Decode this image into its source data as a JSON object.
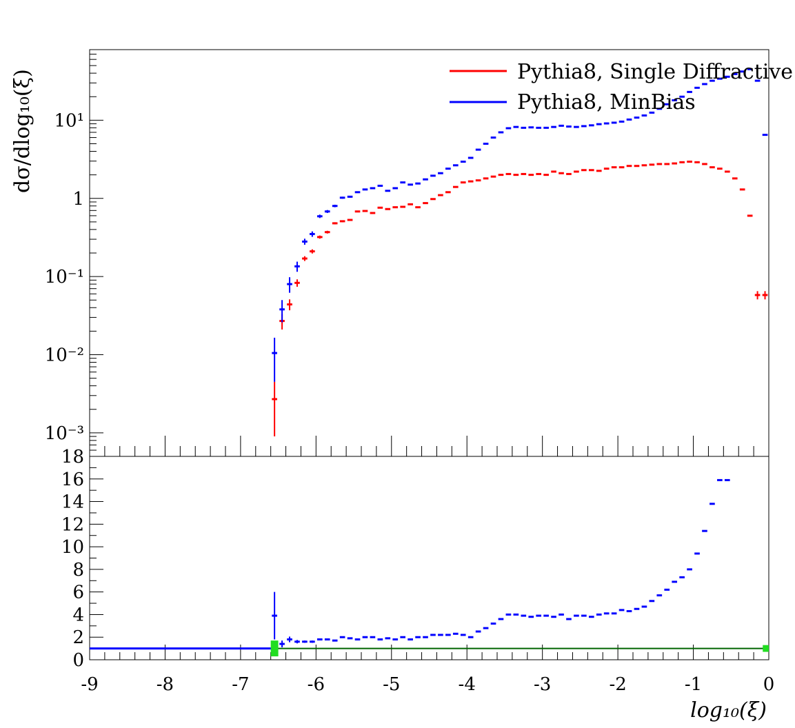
{
  "chart_data": [
    {
      "type": "scatter",
      "panel": "main",
      "yscale": "log",
      "xlim": [
        -9,
        0
      ],
      "ylim": [
        0.0005,
        80
      ],
      "ylabel": "dσ/dlog₁₀(ξ)",
      "xlabel": "",
      "y_ticks": [
        {
          "value": 0.001,
          "label": "10⁻³"
        },
        {
          "value": 0.01,
          "label": "10⁻²"
        },
        {
          "value": 0.1,
          "label": "10⁻¹"
        },
        {
          "value": 1,
          "label": "1"
        },
        {
          "value": 10,
          "label": "10¹"
        }
      ],
      "legend_position": "top-right",
      "series": [
        {
          "name": "Pythia8, Single Diffractive",
          "color": "#ff0000",
          "x": [
            -6.55,
            -6.45,
            -6.35,
            -6.25,
            -6.15,
            -6.05,
            -5.95,
            -5.85,
            -5.75,
            -5.65,
            -5.55,
            -5.45,
            -5.35,
            -5.25,
            -5.15,
            -5.05,
            -4.95,
            -4.85,
            -4.75,
            -4.65,
            -4.55,
            -4.45,
            -4.35,
            -4.25,
            -4.15,
            -4.05,
            -3.95,
            -3.85,
            -3.75,
            -3.65,
            -3.55,
            -3.45,
            -3.35,
            -3.25,
            -3.15,
            -3.05,
            -2.95,
            -2.85,
            -2.75,
            -2.65,
            -2.55,
            -2.45,
            -2.35,
            -2.25,
            -2.15,
            -2.05,
            -1.95,
            -1.85,
            -1.75,
            -1.65,
            -1.55,
            -1.45,
            -1.35,
            -1.25,
            -1.15,
            -1.05,
            -0.95,
            -0.85,
            -0.75,
            -0.65,
            -0.55,
            -0.45,
            -0.35,
            -0.25,
            -0.15,
            -0.05
          ],
          "y": [
            0.0027,
            0.027,
            0.044,
            0.083,
            0.17,
            0.21,
            0.32,
            0.37,
            0.48,
            0.51,
            0.53,
            0.68,
            0.69,
            0.65,
            0.76,
            0.73,
            0.77,
            0.78,
            0.84,
            0.77,
            0.87,
            0.98,
            1.1,
            1.2,
            1.4,
            1.6,
            1.65,
            1.7,
            1.8,
            1.9,
            2.0,
            2.05,
            2.0,
            2.05,
            2.0,
            2.05,
            2.0,
            2.2,
            2.1,
            2.05,
            2.2,
            2.3,
            2.3,
            2.25,
            2.4,
            2.5,
            2.5,
            2.6,
            2.6,
            2.65,
            2.7,
            2.75,
            2.75,
            2.8,
            2.9,
            2.95,
            2.9,
            2.75,
            2.5,
            2.4,
            2.2,
            1.8,
            1.3,
            0.6,
            0.058,
            0.058
          ],
          "yerr": [
            0.0018,
            0.006,
            0.007,
            0.009,
            0.012,
            0.013,
            0.015,
            0.015,
            0.015,
            0.015,
            0.015,
            0.016,
            0.016,
            0.016,
            0.016,
            0.016,
            0.016,
            0.016,
            0.016,
            0.016,
            0.016,
            0.016,
            0.016,
            0.016,
            0.016,
            0.016,
            0.016,
            0.016,
            0.016,
            0.016,
            0.016,
            0.016,
            0.016,
            0.016,
            0.016,
            0.016,
            0.016,
            0.016,
            0.016,
            0.016,
            0.016,
            0.016,
            0.016,
            0.016,
            0.016,
            0.016,
            0.016,
            0.016,
            0.016,
            0.016,
            0.016,
            0.016,
            0.016,
            0.016,
            0.016,
            0.016,
            0.016,
            0.016,
            0.016,
            0.016,
            0.016,
            0.016,
            0.016,
            0.016,
            0.007,
            0.007
          ]
        },
        {
          "name": "Pythia8, MinBias",
          "color": "#0000ff",
          "x": [
            -6.55,
            -6.45,
            -6.35,
            -6.25,
            -6.15,
            -6.05,
            -5.95,
            -5.85,
            -5.75,
            -5.65,
            -5.55,
            -5.45,
            -5.35,
            -5.25,
            -5.15,
            -5.05,
            -4.95,
            -4.85,
            -4.75,
            -4.65,
            -4.55,
            -4.45,
            -4.35,
            -4.25,
            -4.15,
            -4.05,
            -3.95,
            -3.85,
            -3.75,
            -3.65,
            -3.55,
            -3.45,
            -3.35,
            -3.25,
            -3.15,
            -3.05,
            -2.95,
            -2.85,
            -2.75,
            -2.65,
            -2.55,
            -2.45,
            -2.35,
            -2.25,
            -2.15,
            -2.05,
            -1.95,
            -1.85,
            -1.75,
            -1.65,
            -1.55,
            -1.45,
            -1.35,
            -1.25,
            -1.15,
            -1.05,
            -0.95,
            -0.85,
            -0.75,
            -0.65,
            -0.55,
            -0.45,
            -0.35,
            -0.25,
            -0.15,
            -0.05
          ],
          "y": [
            0.0105,
            0.038,
            0.08,
            0.135,
            0.28,
            0.35,
            0.59,
            0.68,
            0.8,
            1.02,
            1.05,
            1.2,
            1.3,
            1.35,
            1.45,
            1.25,
            1.35,
            1.6,
            1.5,
            1.55,
            1.75,
            1.95,
            2.1,
            2.4,
            2.65,
            2.95,
            3.3,
            4.2,
            5.0,
            6.0,
            7.0,
            7.9,
            8.2,
            8.0,
            8.1,
            8.0,
            8.0,
            8.2,
            8.5,
            8.3,
            8.2,
            8.4,
            8.6,
            8.9,
            9.1,
            9.3,
            9.6,
            10.2,
            10.8,
            11.5,
            12.5,
            14,
            16,
            18,
            20,
            23,
            26,
            29,
            32,
            34,
            36,
            39,
            42,
            45,
            32,
            6.5
          ],
          "yerr": [
            0.006,
            0.012,
            0.018,
            0.02,
            0.025,
            0.028,
            0.03,
            0.03,
            0.03,
            0.03,
            0.03,
            0.03,
            0.03,
            0.03,
            0.03,
            0.03,
            0.03,
            0.03,
            0.03,
            0.03,
            0.03,
            0.03,
            0.03,
            0.03,
            0.03,
            0.03,
            0.03,
            0.03,
            0.03,
            0.03,
            0.03,
            0.03,
            0.03,
            0.03,
            0.03,
            0.03,
            0.03,
            0.03,
            0.03,
            0.03,
            0.03,
            0.03,
            0.03,
            0.03,
            0.03,
            0.03,
            0.03,
            0.03,
            0.03,
            0.03,
            0.03,
            0.03,
            0.03,
            0.03,
            0.03,
            0.03,
            0.03,
            0.03,
            0.03,
            0.03,
            0.03,
            0.03,
            0.03,
            0.03,
            0.03,
            0.03
          ]
        }
      ]
    },
    {
      "type": "scatter",
      "panel": "ratio",
      "yscale": "linear",
      "xlim": [
        -9,
        0
      ],
      "ylim": [
        0,
        18
      ],
      "xlabel": "log₁₀(ξ)",
      "ylabel": "",
      "x_tick_labels": [
        "-9",
        "-8",
        "-7",
        "-6",
        "-5",
        "-4",
        "-3",
        "-2",
        "-1",
        "0"
      ],
      "y_tick_labels": [
        "0",
        "2",
        "4",
        "6",
        "8",
        "10",
        "12",
        "14",
        "16",
        "18"
      ],
      "reference_line": {
        "value": 1,
        "color": "#006400"
      },
      "series": [
        {
          "color": "#0000ff",
          "x": [
            -6.55,
            -6.45,
            -6.35,
            -6.25,
            -6.15,
            -6.05,
            -5.95,
            -5.85,
            -5.75,
            -5.65,
            -5.55,
            -5.45,
            -5.35,
            -5.25,
            -5.15,
            -5.05,
            -4.95,
            -4.85,
            -4.75,
            -4.65,
            -4.55,
            -4.45,
            -4.35,
            -4.25,
            -4.15,
            -4.05,
            -3.95,
            -3.85,
            -3.75,
            -3.65,
            -3.55,
            -3.45,
            -3.35,
            -3.25,
            -3.15,
            -3.05,
            -2.95,
            -2.85,
            -2.75,
            -2.65,
            -2.55,
            -2.45,
            -2.35,
            -2.25,
            -2.15,
            -2.05,
            -1.95,
            -1.85,
            -1.75,
            -1.65,
            -1.55,
            -1.45,
            -1.35,
            -1.25,
            -1.15,
            -1.05,
            -0.95,
            -0.85,
            -0.75,
            -0.65,
            -0.55
          ],
          "y": [
            3.9,
            1.4,
            1.8,
            1.6,
            1.6,
            1.6,
            1.8,
            1.8,
            1.7,
            2.0,
            1.9,
            1.8,
            2.0,
            2.0,
            1.8,
            1.9,
            1.8,
            2.0,
            1.8,
            2.0,
            2.0,
            2.2,
            2.2,
            2.2,
            2.3,
            2.2,
            2.0,
            2.5,
            2.8,
            3.2,
            3.6,
            4.0,
            4.0,
            3.9,
            3.8,
            3.9,
            3.9,
            3.8,
            4.0,
            3.6,
            3.9,
            3.9,
            3.8,
            4.0,
            4.1,
            4.1,
            4.4,
            4.3,
            4.5,
            4.7,
            5.2,
            5.7,
            6.2,
            6.9,
            7.3,
            8.0,
            9.4,
            11.4,
            13.8,
            15.9,
            15.9
          ],
          "yerr": [
            2.1,
            0.3,
            0.25,
            0.15,
            0.1,
            0.1,
            0.08,
            0.08,
            0.06,
            0.06,
            0.05,
            0.05,
            0.05,
            0.05,
            0.05,
            0.05,
            0.05,
            0.05,
            0.05,
            0.05,
            0.05,
            0.05,
            0.05,
            0.05,
            0.05,
            0.05,
            0.05,
            0.05,
            0.05,
            0.05,
            0.05,
            0.05,
            0.05,
            0.05,
            0.05,
            0.05,
            0.05,
            0.05,
            0.05,
            0.05,
            0.05,
            0.05,
            0.05,
            0.05,
            0.05,
            0.05,
            0.05,
            0.05,
            0.05,
            0.05,
            0.05,
            0.05,
            0.05,
            0.05,
            0.05,
            0.05,
            0.05,
            0.05,
            0.05,
            0.05,
            0.05
          ]
        }
      ]
    }
  ]
}
